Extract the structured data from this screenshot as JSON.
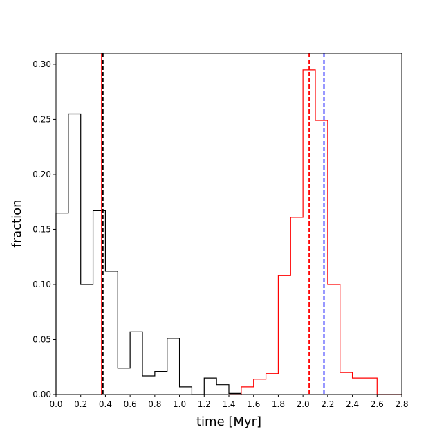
{
  "chart_data": {
    "type": "histogram",
    "xlabel": "time [Myr]",
    "ylabel": "fraction",
    "xlim": [
      0.0,
      2.8
    ],
    "ylim": [
      0.0,
      0.31
    ],
    "bin_width": 0.1,
    "xticks": [
      "0.0",
      "0.2",
      "0.4",
      "0.6",
      "0.8",
      "1.0",
      "1.2",
      "1.4",
      "1.6",
      "1.8",
      "2.0",
      "2.2",
      "2.4",
      "2.6",
      "2.8"
    ],
    "yticks": [
      "0.00",
      "0.05",
      "0.10",
      "0.15",
      "0.20",
      "0.25",
      "0.30"
    ],
    "grid": false,
    "series": [
      {
        "color": "#000000",
        "bin_edges": [
          0.0,
          0.1,
          0.2,
          0.3,
          0.4,
          0.5,
          0.6,
          0.7,
          0.8,
          0.9,
          1.0,
          1.1,
          1.2,
          1.3,
          1.4,
          1.5
        ],
        "values": [
          0.165,
          0.255,
          0.1,
          0.167,
          0.112,
          0.024,
          0.057,
          0.017,
          0.021,
          0.051,
          0.007,
          0.0,
          0.015,
          0.009,
          0.001
        ]
      },
      {
        "color": "#ff0000",
        "bin_edges": [
          1.4,
          1.5,
          1.6,
          1.7,
          1.8,
          1.9,
          2.0,
          2.1,
          2.2,
          2.3,
          2.4,
          2.5,
          2.6,
          2.7,
          2.8
        ],
        "values": [
          0.0,
          0.007,
          0.014,
          0.019,
          0.108,
          0.161,
          0.295,
          0.249,
          0.1,
          0.02,
          0.015,
          0.015,
          0.0,
          0.0
        ]
      }
    ],
    "vlines": [
      {
        "x": 0.37,
        "color": "#ff0000",
        "style": "solid"
      },
      {
        "x": 0.38,
        "color": "#000000",
        "style": "dashed"
      },
      {
        "x": 2.05,
        "color": "#ff0000",
        "style": "dashed"
      },
      {
        "x": 2.17,
        "color": "#0000ff",
        "style": "dashed"
      }
    ]
  }
}
